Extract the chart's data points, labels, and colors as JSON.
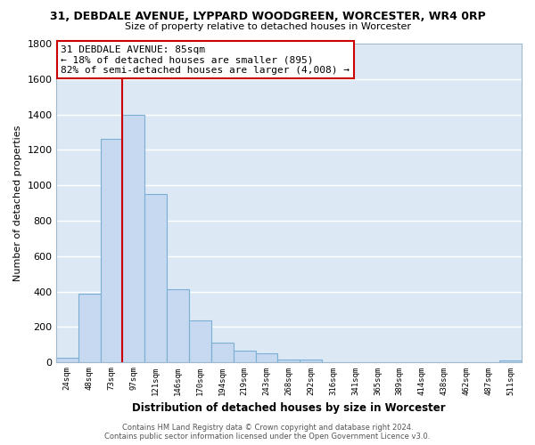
{
  "title": "31, DEBDALE AVENUE, LYPPARD WOODGREEN, WORCESTER, WR4 0RP",
  "subtitle": "Size of property relative to detached houses in Worcester",
  "xlabel": "Distribution of detached houses by size in Worcester",
  "ylabel": "Number of detached properties",
  "bin_labels": [
    "24sqm",
    "48sqm",
    "73sqm",
    "97sqm",
    "121sqm",
    "146sqm",
    "170sqm",
    "194sqm",
    "219sqm",
    "243sqm",
    "268sqm",
    "292sqm",
    "316sqm",
    "341sqm",
    "365sqm",
    "389sqm",
    "414sqm",
    "438sqm",
    "462sqm",
    "487sqm",
    "511sqm"
  ],
  "bar_values": [
    25,
    390,
    1260,
    1400,
    950,
    415,
    235,
    110,
    65,
    50,
    15,
    15,
    0,
    0,
    0,
    0,
    0,
    0,
    0,
    0,
    10
  ],
  "bar_color": "#c6d9f0",
  "bar_edge_color": "#7bafd4",
  "marker_line_color": "#cc0000",
  "annotation_text": "31 DEBDALE AVENUE: 85sqm\n← 18% of detached houses are smaller (895)\n82% of semi-detached houses are larger (4,008) →",
  "annotation_box_facecolor": "#ffffff",
  "annotation_box_edgecolor": "#cc0000",
  "ylim": [
    0,
    1800
  ],
  "yticks": [
    0,
    200,
    400,
    600,
    800,
    1000,
    1200,
    1400,
    1600,
    1800
  ],
  "footer_text": "Contains HM Land Registry data © Crown copyright and database right 2024.\nContains public sector information licensed under the Open Government Licence v3.0.",
  "background_color": "#ffffff",
  "plot_bg_color": "#dce9f5",
  "grid_color": "#ffffff"
}
